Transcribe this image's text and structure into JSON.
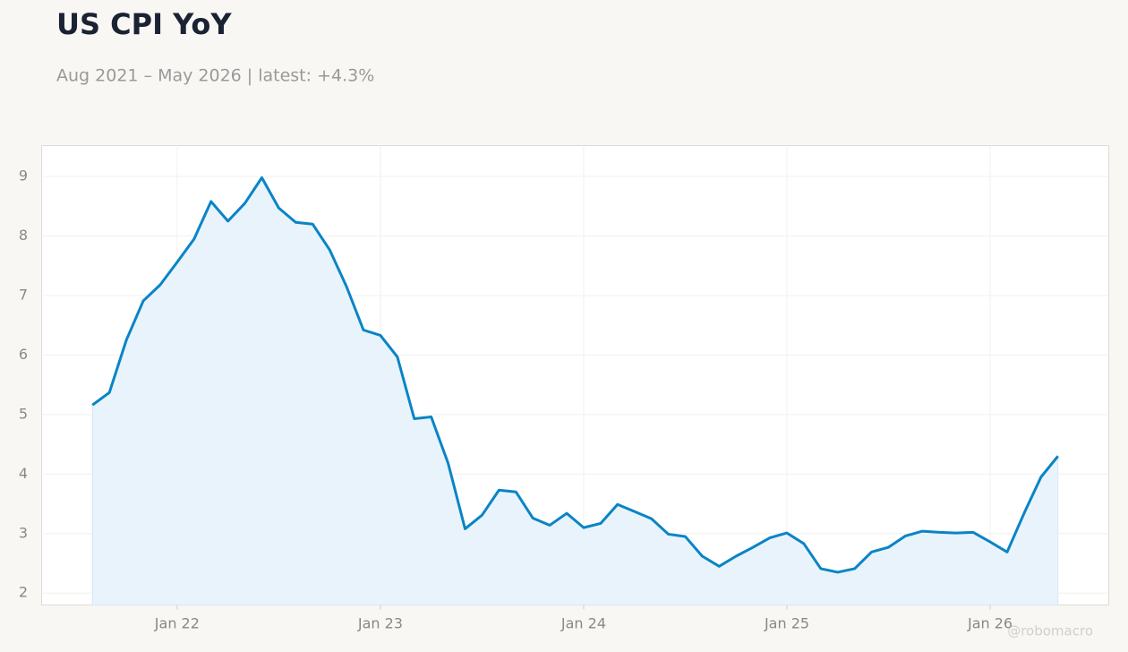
{
  "chart_data": {
    "type": "line",
    "title": "US CPI YoY",
    "subtitle": "Aug 2021 – May 2026 | latest: +4.3%",
    "watermark": "@robomacro",
    "x": [
      "2021-08",
      "2021-09",
      "2021-10",
      "2021-11",
      "2021-12",
      "2022-01",
      "2022-02",
      "2022-03",
      "2022-04",
      "2022-05",
      "2022-06",
      "2022-07",
      "2022-08",
      "2022-09",
      "2022-10",
      "2022-11",
      "2022-12",
      "2023-01",
      "2023-02",
      "2023-03",
      "2023-04",
      "2023-05",
      "2023-06",
      "2023-07",
      "2023-08",
      "2023-09",
      "2023-10",
      "2023-11",
      "2023-12",
      "2024-01",
      "2024-02",
      "2024-03",
      "2024-04",
      "2024-05",
      "2024-06",
      "2024-07",
      "2024-08",
      "2024-09",
      "2024-10",
      "2024-11",
      "2024-12",
      "2025-01",
      "2025-02",
      "2025-03",
      "2025-04",
      "2025-05",
      "2025-06",
      "2025-07",
      "2025-08",
      "2025-09",
      "2025-10",
      "2025-11",
      "2025-12",
      "2026-01",
      "2026-02",
      "2026-03",
      "2026-04",
      "2026-05"
    ],
    "series": [
      {
        "name": "US CPI YoY",
        "color": "#0a84c6",
        "fill": "#e8f3fb",
        "values": [
          5.16,
          5.37,
          6.25,
          6.91,
          7.18,
          7.56,
          7.95,
          8.58,
          8.25,
          8.55,
          8.98,
          8.47,
          8.23,
          8.2,
          7.77,
          7.15,
          6.42,
          6.33,
          5.97,
          4.93,
          4.96,
          4.18,
          3.08,
          3.31,
          3.73,
          3.7,
          3.26,
          3.14,
          3.34,
          3.1,
          3.17,
          3.49,
          3.37,
          3.25,
          2.99,
          2.95,
          2.62,
          2.45,
          2.62,
          2.77,
          2.93,
          3.01,
          2.83,
          2.41,
          2.35,
          2.41,
          2.69,
          2.77,
          2.96,
          3.04,
          3.02,
          3.01,
          3.02,
          2.86,
          2.69,
          3.34,
          3.95,
          4.3
        ]
      }
    ],
    "xlim": [
      "2021-05",
      "2026-08"
    ],
    "xticks": [
      {
        "value": "2022-01",
        "label": "Jan 22"
      },
      {
        "value": "2023-01",
        "label": "Jan 23"
      },
      {
        "value": "2024-01",
        "label": "Jan 24"
      },
      {
        "value": "2025-01",
        "label": "Jan 25"
      },
      {
        "value": "2026-01",
        "label": "Jan 26"
      }
    ],
    "ylim": [
      1.8,
      9.52
    ],
    "yticks": [
      2,
      3,
      4,
      5,
      6,
      7,
      8,
      9
    ],
    "grid": true
  }
}
